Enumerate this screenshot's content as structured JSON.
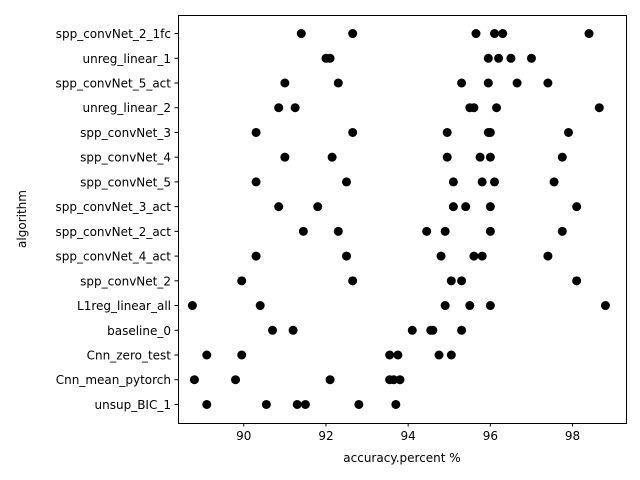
{
  "chart_data": {
    "type": "scatter",
    "title": "",
    "xlabel": "accuracy.percent %",
    "ylabel": "algorithm",
    "xlim": [
      88.4,
      99.3
    ],
    "xticks": [
      90,
      92,
      94,
      96,
      98
    ],
    "grid": false,
    "legend": "none",
    "marker_color": "#000000",
    "categories": [
      "spp_convNet_2_1fc",
      "unreg_linear_1",
      "spp_convNet_5_act",
      "unreg_linear_2",
      "spp_convNet_3",
      "spp_convNet_4",
      "spp_convNet_5",
      "spp_convNet_3_act",
      "spp_convNet_2_act",
      "spp_convNet_4_act",
      "spp_convNet_2",
      "L1reg_linear_all",
      "baseline_0",
      "Cnn_zero_test",
      "Cnn_mean_pytorch",
      "unsup_BIC_1"
    ],
    "points": [
      [
        91.4,
        92.65,
        95.65,
        96.1,
        96.3,
        98.4
      ],
      [
        92.0,
        92.1,
        95.95,
        96.2,
        96.5,
        97.0
      ],
      [
        91.0,
        92.3,
        95.3,
        95.95,
        96.65,
        97.4
      ],
      [
        90.85,
        91.25,
        95.5,
        95.6,
        96.15,
        98.65
      ],
      [
        90.3,
        92.65,
        94.95,
        95.95,
        96.0,
        97.9
      ],
      [
        91.0,
        92.15,
        94.95,
        95.75,
        96.0,
        97.75
      ],
      [
        90.3,
        92.5,
        95.1,
        95.8,
        96.1,
        97.55
      ],
      [
        90.85,
        91.8,
        95.1,
        95.4,
        96.0,
        98.1
      ],
      [
        91.45,
        92.3,
        94.45,
        94.9,
        96.0,
        97.75
      ],
      [
        90.3,
        92.5,
        94.8,
        95.6,
        95.8,
        97.4
      ],
      [
        89.95,
        92.65,
        95.05,
        95.3,
        98.1
      ],
      [
        88.75,
        90.4,
        94.9,
        95.5,
        96.0,
        98.8
      ],
      [
        90.7,
        91.2,
        94.1,
        94.55,
        94.6,
        95.3
      ],
      [
        89.1,
        89.95,
        93.55,
        93.75,
        94.75,
        95.05
      ],
      [
        88.8,
        89.8,
        92.1,
        93.55,
        93.65,
        93.8
      ],
      [
        89.1,
        90.55,
        91.3,
        91.5,
        92.8,
        93.7
      ]
    ]
  }
}
